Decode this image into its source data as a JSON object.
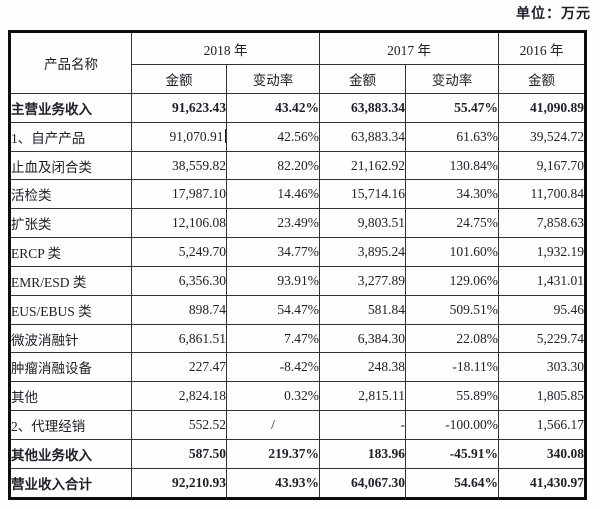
{
  "unit_label": "单位：万元",
  "colors": {
    "text": "#20202a",
    "border_outer": "#0d0d0d",
    "border_inner": "#333333",
    "background": "#fefefe"
  },
  "table": {
    "header": {
      "product_column": "产品名称",
      "year_2018": "2018 年",
      "year_2017": "2017 年",
      "year_2016": "2016 年",
      "amount": "金额",
      "change_rate": "变动率"
    },
    "rows": [
      {
        "label": "主营业务收入",
        "bold": true,
        "caret": false,
        "cells": [
          "91,623.43",
          "43.42%",
          "63,883.34",
          "55.47%",
          "41,090.89"
        ]
      },
      {
        "label": "1、自产产品",
        "bold": false,
        "caret": true,
        "cells": [
          "91,070.91",
          "42.56%",
          "63,883.34",
          "61.63%",
          "39,524.72"
        ]
      },
      {
        "label": "止血及闭合类",
        "bold": false,
        "caret": false,
        "cells": [
          "38,559.82",
          "82.20%",
          "21,162.92",
          "130.84%",
          "9,167.70"
        ]
      },
      {
        "label": "活检类",
        "bold": false,
        "caret": false,
        "cells": [
          "17,987.10",
          "14.46%",
          "15,714.16",
          "34.30%",
          "11,700.84"
        ]
      },
      {
        "label": "扩张类",
        "bold": false,
        "caret": false,
        "cells": [
          "12,106.08",
          "23.49%",
          "9,803.51",
          "24.75%",
          "7,858.63"
        ]
      },
      {
        "label": "ERCP 类",
        "bold": false,
        "caret": false,
        "cells": [
          "5,249.70",
          "34.77%",
          "3,895.24",
          "101.60%",
          "1,932.19"
        ]
      },
      {
        "label": "EMR/ESD 类",
        "bold": false,
        "caret": false,
        "cells": [
          "6,356.30",
          "93.91%",
          "3,277.89",
          "129.06%",
          "1,431.01"
        ]
      },
      {
        "label": "EUS/EBUS 类",
        "bold": false,
        "caret": false,
        "cells": [
          "898.74",
          "54.47%",
          "581.84",
          "509.51%",
          "95.46"
        ]
      },
      {
        "label": "微波消融针",
        "bold": false,
        "caret": false,
        "cells": [
          "6,861.51",
          "7.47%",
          "6,384.30",
          "22.08%",
          "5,229.74"
        ]
      },
      {
        "label": "肿瘤消融设备",
        "bold": false,
        "caret": false,
        "cells": [
          "227.47",
          "-8.42%",
          "248.38",
          "-18.11%",
          "303.30"
        ]
      },
      {
        "label": "其他",
        "bold": false,
        "caret": false,
        "cells": [
          "2,824.18",
          "0.32%",
          "2,815.11",
          "55.89%",
          "1,805.85"
        ]
      },
      {
        "label": "2、代理经销",
        "bold": false,
        "caret": false,
        "cells": [
          "552.52",
          "/",
          "-",
          "-100.00%",
          "1,566.17"
        ]
      },
      {
        "label": "其他业务收入",
        "bold": true,
        "caret": false,
        "cells": [
          "587.50",
          "219.37%",
          "183.96",
          "-45.91%",
          "340.08"
        ]
      },
      {
        "label": "营业收入合计",
        "bold": true,
        "caret": false,
        "cells": [
          "92,210.93",
          "43.93%",
          "64,067.30",
          "54.64%",
          "41,430.97"
        ]
      }
    ]
  }
}
